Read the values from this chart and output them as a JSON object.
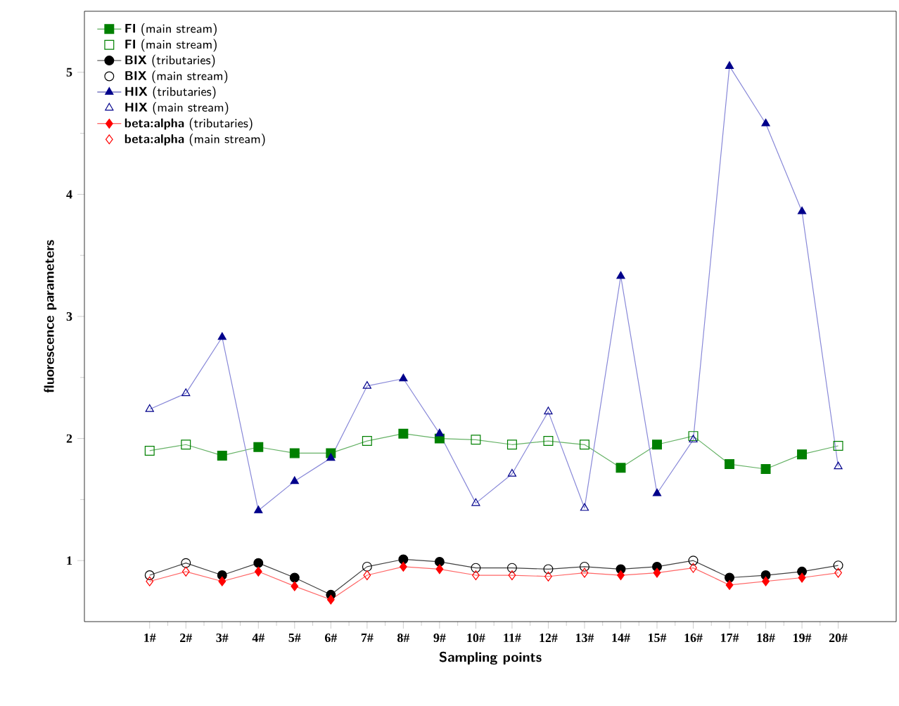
{
  "chart_data": {
    "type": "line",
    "xlabel": "Sampling points",
    "ylabel": "fluorescence parameters",
    "categories": [
      "1#",
      "2#",
      "3#",
      "4#",
      "5#",
      "6#",
      "7#",
      "8#",
      "9#",
      "10#",
      "11#",
      "12#",
      "13#",
      "14#",
      "15#",
      "16#",
      "17#",
      "18#",
      "19#",
      "20#"
    ],
    "ylim": [
      0.5,
      5.5
    ],
    "yticks": [
      1,
      2,
      3,
      4,
      5
    ],
    "legend": "top left",
    "series": [
      {
        "color": "#66b266",
        "marker": "none",
        "values": [
          1.9,
          1.95,
          1.86,
          1.93,
          1.88,
          1.88,
          1.98,
          2.04,
          2.0,
          1.99,
          1.95,
          1.98,
          1.95,
          1.76,
          1.95,
          2.02,
          1.79,
          1.75,
          1.87,
          1.94
        ]
      },
      {
        "color": "#404040",
        "marker": "none",
        "values": [
          0.88,
          0.98,
          0.88,
          0.98,
          0.86,
          0.72,
          0.95,
          1.01,
          0.99,
          0.94,
          0.94,
          0.93,
          0.95,
          0.93,
          0.95,
          1.0,
          0.86,
          0.88,
          0.91,
          0.96
        ]
      },
      {
        "color": "#8888d8",
        "marker": "none",
        "values": [
          2.24,
          2.37,
          2.83,
          1.41,
          1.65,
          1.84,
          2.43,
          2.49,
          2.04,
          1.47,
          1.71,
          2.22,
          1.43,
          3.33,
          1.55,
          1.99,
          5.05,
          4.58,
          3.86,
          1.77
        ]
      },
      {
        "color": "#ff6666",
        "marker": "none",
        "values": [
          0.83,
          0.91,
          0.83,
          0.91,
          0.79,
          0.68,
          0.88,
          0.95,
          0.93,
          0.88,
          0.88,
          0.87,
          0.9,
          0.88,
          0.9,
          0.94,
          0.8,
          0.83,
          0.86,
          0.9
        ]
      },
      {
        "type": "scatter",
        "name": "**FI** (main stream)",
        "color": "#008000",
        "marker": "square",
        "values": [
          null,
          null,
          1.86,
          1.93,
          1.88,
          1.88,
          null,
          2.04,
          2.0,
          null,
          null,
          null,
          null,
          1.76,
          1.95,
          null,
          1.79,
          1.75,
          1.87,
          null
        ]
      },
      {
        "type": "scatter",
        "name": "**FI** (main stream)",
        "color": "#008000",
        "marker": "square",
        "values": [
          1.9,
          1.95,
          null,
          null,
          null,
          null,
          1.98,
          null,
          null,
          1.99,
          1.95,
          1.98,
          1.95,
          null,
          null,
          2.02,
          null,
          null,
          null,
          1.94
        ]
      },
      {
        "type": "scatter",
        "name": "**BIX** (tributaries)",
        "color": "#000000",
        "marker": "circle",
        "values": [
          null,
          null,
          0.88,
          0.98,
          0.86,
          0.72,
          null,
          1.01,
          0.99,
          null,
          null,
          null,
          null,
          0.93,
          0.95,
          null,
          0.86,
          0.88,
          0.91,
          null
        ]
      },
      {
        "type": "scatter",
        "name": "**BIX** (main stream)",
        "color": "#000000",
        "marker": "circle",
        "values": [
          0.88,
          0.98,
          null,
          null,
          null,
          null,
          0.95,
          null,
          null,
          0.94,
          0.94,
          0.93,
          0.95,
          null,
          null,
          1.0,
          null,
          null,
          null,
          0.96
        ]
      },
      {
        "type": "scatter",
        "name": "**HIX** (tributaries)",
        "color": "#00008b",
        "marker": "triangle",
        "values": [
          null,
          null,
          2.83,
          1.41,
          1.65,
          1.84,
          null,
          2.49,
          2.04,
          null,
          null,
          null,
          null,
          3.33,
          1.55,
          null,
          5.05,
          4.58,
          3.86,
          null
        ]
      },
      {
        "type": "scatter",
        "name": "**HIX** (main stream)",
        "color": "#00008b",
        "marker": "triangle",
        "values": [
          2.24,
          2.37,
          null,
          null,
          null,
          null,
          2.43,
          null,
          null,
          1.47,
          1.71,
          2.22,
          1.43,
          null,
          null,
          1.99,
          null,
          null,
          null,
          1.77
        ]
      },
      {
        "type": "scatter",
        "name": "**beta:alpha** (tributaries)",
        "color": "#ff0000",
        "marker": "diamond",
        "values": [
          null,
          null,
          0.83,
          0.91,
          0.79,
          0.68,
          null,
          0.95,
          0.93,
          null,
          null,
          null,
          null,
          0.88,
          0.9,
          null,
          0.8,
          0.83,
          0.86,
          null
        ]
      },
      {
        "type": "scatter",
        "name": "**beta:alpha** (main stream)",
        "color": "#ff0000",
        "marker": "diamond",
        "values": [
          0.83,
          0.91,
          null,
          null,
          null,
          null,
          0.88,
          null,
          null,
          0.88,
          0.88,
          0.87,
          0.9,
          null,
          null,
          0.94,
          null,
          null,
          null,
          0.9
        ]
      }
    ]
  }
}
